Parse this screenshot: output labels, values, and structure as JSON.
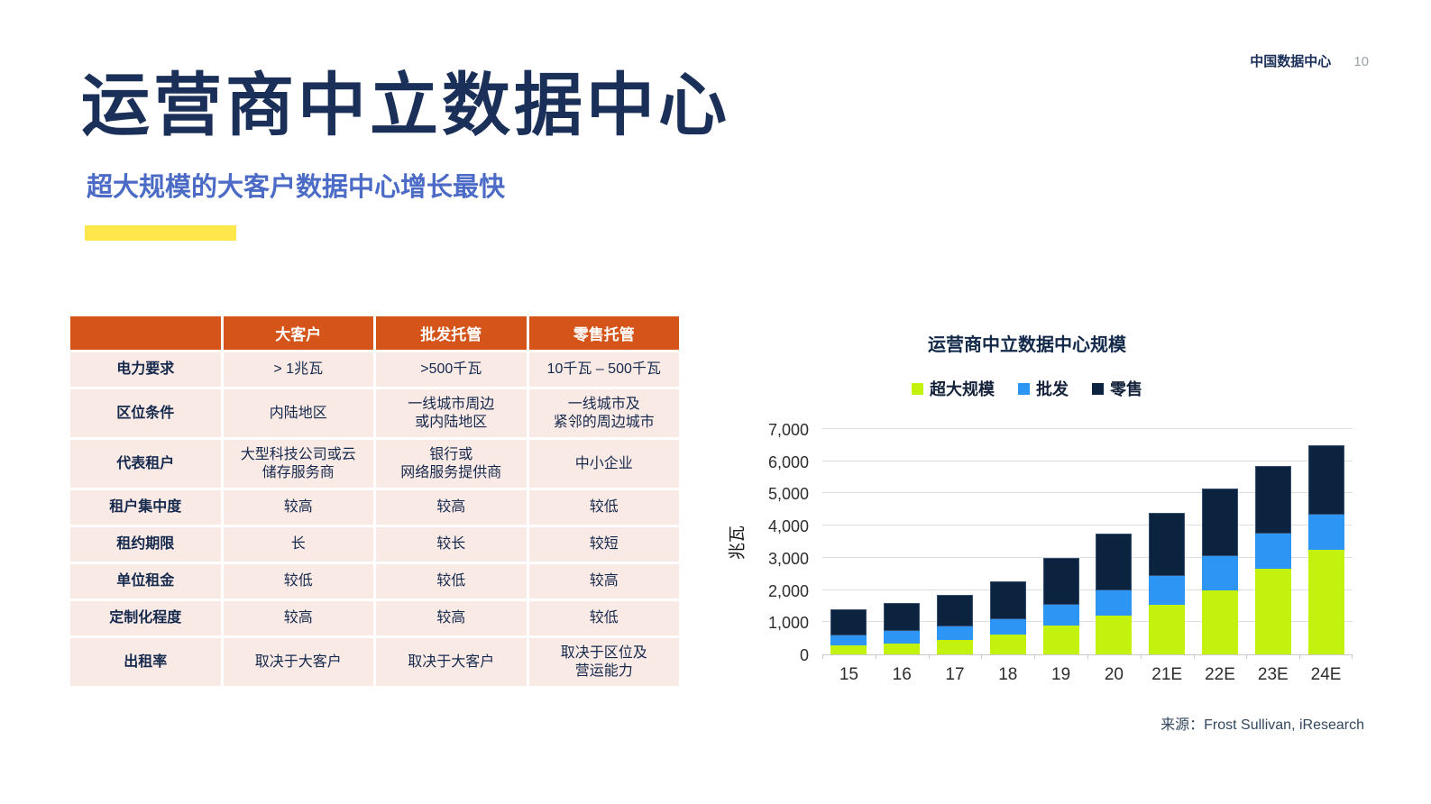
{
  "page": {
    "header_label": "中国数据中心",
    "page_number": "10",
    "title": "运营商中立数据中心",
    "subtitle": "超大规模的大客户数据中心增长最快"
  },
  "table": {
    "headers": [
      "",
      "大客户",
      "批发托管",
      "零售托管"
    ],
    "rows": [
      {
        "label": "电力要求",
        "values": [
          "> 1兆瓦",
          ">500千瓦",
          "10千瓦 – 500千瓦"
        ]
      },
      {
        "label": "区位条件",
        "values": [
          "内陆地区",
          "一线城市周边\n或内陆地区",
          "一线城市及\n紧邻的周边城市"
        ]
      },
      {
        "label": "代表租户",
        "values": [
          "大型科技公司或云\n储存服务商",
          "银行或\n网络服务提供商",
          "中小企业"
        ]
      },
      {
        "label": "租户集中度",
        "values": [
          "较高",
          "较高",
          "较低"
        ]
      },
      {
        "label": "租约期限",
        "values": [
          "长",
          "较长",
          "较短"
        ]
      },
      {
        "label": "单位租金",
        "values": [
          "较低",
          "较低",
          "较高"
        ]
      },
      {
        "label": "定制化程度",
        "values": [
          "较高",
          "较高",
          "较低"
        ]
      },
      {
        "label": "出租率",
        "values": [
          "取决于大客户",
          "取决于大客户",
          "取决于区位及\n营运能力"
        ]
      }
    ]
  },
  "chart_data": {
    "type": "bar",
    "stacked": true,
    "title": "运营商中立数据中心规模",
    "ylabel": "兆瓦",
    "xlabel": "",
    "categories": [
      "15",
      "16",
      "17",
      "18",
      "19",
      "20",
      "21E",
      "22E",
      "23E",
      "24E"
    ],
    "series": [
      {
        "name": "超大规模",
        "color": "#c3f20f",
        "values": [
          280,
          330,
          450,
          620,
          900,
          1200,
          1550,
          2000,
          2650,
          3250
        ]
      },
      {
        "name": "批发",
        "color": "#2d96f5",
        "values": [
          300,
          390,
          410,
          470,
          650,
          800,
          900,
          1050,
          1100,
          1100
        ]
      },
      {
        "name": "零售",
        "color": "#0c2340",
        "values": [
          820,
          870,
          990,
          1190,
          1450,
          1750,
          1950,
          2100,
          2100,
          2150
        ]
      }
    ],
    "totals": [
      1400,
      1590,
      1850,
      2280,
      3000,
      3750,
      4400,
      5150,
      5850,
      6500
    ],
    "ylim": [
      0,
      7000
    ],
    "ytick_step": 1000,
    "grid": true,
    "legend_position": "top",
    "source": "来源：Frost Sullivan, iResearch"
  },
  "colors": {
    "accent_yellow": "#fde74a",
    "table_header_bg": "#d4541a",
    "table_row_bg": "#faeae6",
    "table_header_text": "#ffffff",
    "title_navy": "#1b3059",
    "subtitle_blue": "#4c6bc6",
    "axis_text": "#2d2d2d",
    "gridline": "#dedede"
  }
}
